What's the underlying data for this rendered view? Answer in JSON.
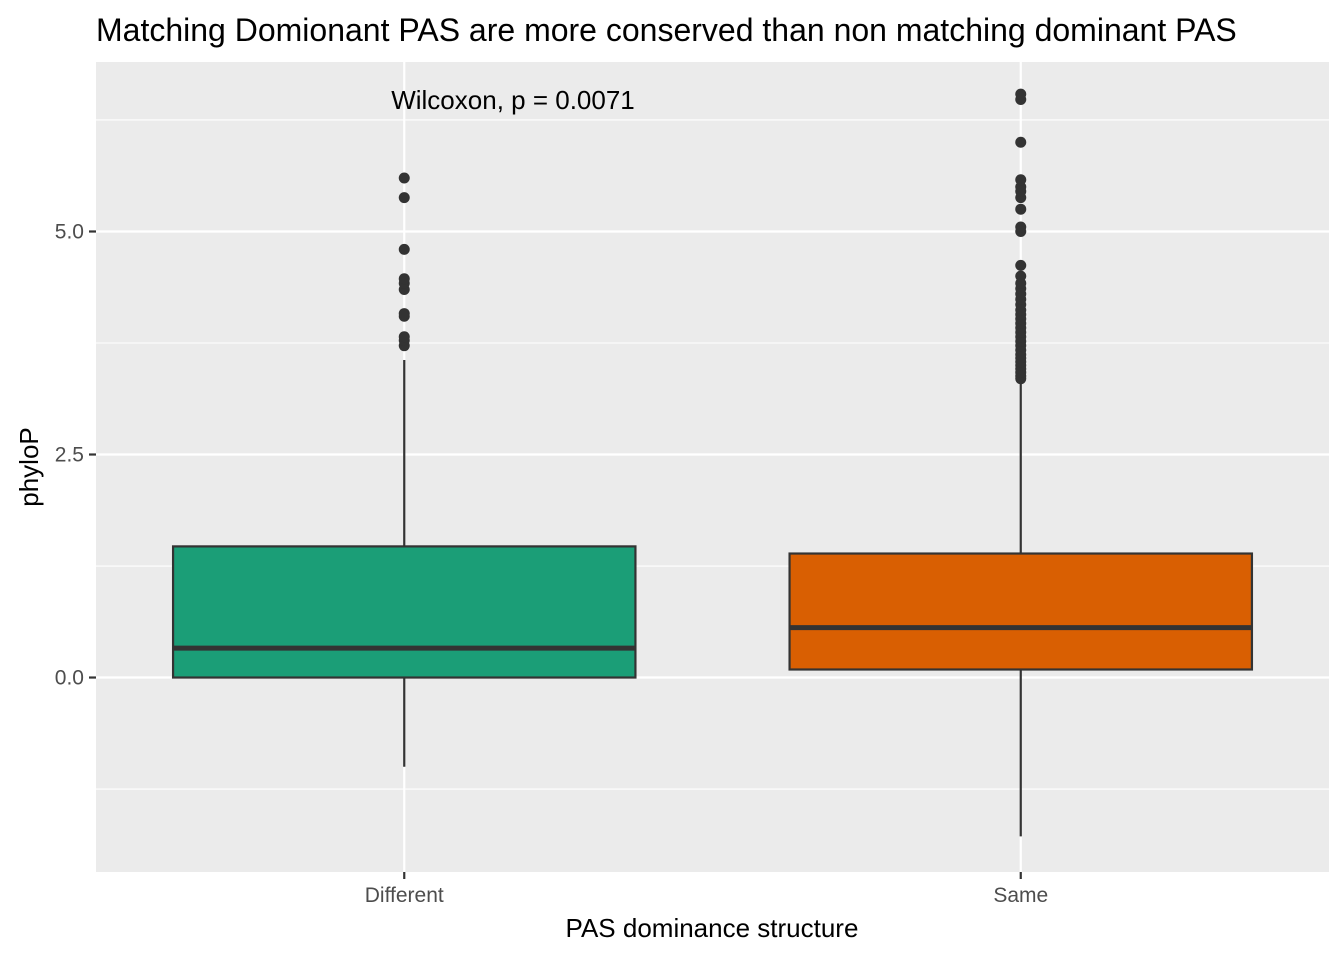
{
  "chart_data": {
    "type": "boxplot",
    "title": "Matching Domionant PAS are more conserved than non matching dominant PAS",
    "xlabel": "PAS dominance structure",
    "ylabel": "phyloP",
    "annotation": "Wilcoxon, p = 0.0071",
    "categories": [
      "Different",
      "Same"
    ],
    "ylim": [
      -2.18,
      6.9
    ],
    "y_ticks": [
      0.0,
      2.5,
      5.0
    ],
    "y_tick_labels": [
      "0.0",
      "2.5",
      "5.0"
    ],
    "grid": true,
    "legend": "none",
    "series": [
      {
        "category": "Different",
        "color": "#1b9e77",
        "whisker_low": -1.0,
        "q1": 0.0,
        "median": 0.33,
        "q3": 1.47,
        "whisker_high": 3.56,
        "outliers": [
          3.72,
          3.78,
          3.82,
          4.05,
          4.08,
          4.35,
          4.42,
          4.47,
          4.8,
          5.38,
          5.6
        ]
      },
      {
        "category": "Same",
        "color": "#d95f02",
        "whisker_low": -1.78,
        "q1": 0.09,
        "median": 0.56,
        "q3": 1.39,
        "whisker_high": 3.3,
        "outliers": [
          3.35,
          3.38,
          3.42,
          3.46,
          3.5,
          3.54,
          3.58,
          3.62,
          3.67,
          3.72,
          3.77,
          3.82,
          3.87,
          3.92,
          3.97,
          4.02,
          4.07,
          4.12,
          4.18,
          4.24,
          4.3,
          4.36,
          4.42,
          4.5,
          4.62,
          5.0,
          5.05,
          5.25,
          5.38,
          5.45,
          5.5,
          5.58,
          6.0,
          6.48,
          6.54
        ]
      }
    ]
  }
}
